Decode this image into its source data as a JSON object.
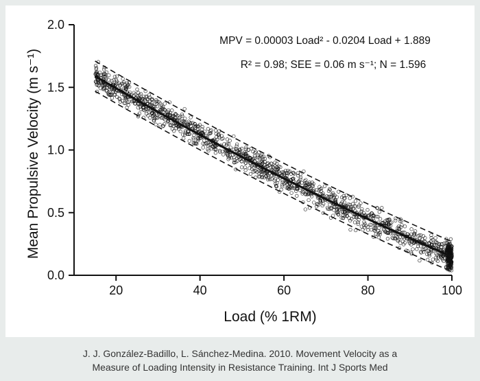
{
  "caption": {
    "line1": "J. J. González-Badillo, L. Sánchez-Medina. 2010. Movement Velocity as a",
    "line2": "Measure of Loading Intensity in Resistance Training. Int J Sports Med"
  },
  "chart_data": {
    "type": "scatter",
    "xlabel": "Load (% 1RM)",
    "ylabel": "Mean Propulsive Velocity (m s⁻¹)",
    "xlim": [
      10,
      100
    ],
    "ylim": [
      0,
      2.0
    ],
    "x_ticks": [
      "20",
      "40",
      "60",
      "80",
      "100"
    ],
    "y_ticks": [
      "0.0",
      "0.5",
      "1.0",
      "1.5",
      "2.0"
    ],
    "grid": false,
    "annotations": {
      "equation": "MPV = 0.00003 Load² - 0.0204 Load + 1.889",
      "stats": "R² = 0.98; SEE = 0.06 m s⁻¹; N = 1.596"
    },
    "fit": {
      "coefficients": {
        "a": 3e-05,
        "b": -0.0204,
        "c": 1.889
      },
      "x_range": [
        15,
        100
      ],
      "band_offsets": [
        0.12,
        -0.12
      ],
      "line_style": "solid",
      "band_style": "dashed"
    },
    "scatter": {
      "n_shown": 1596,
      "x_range": [
        15,
        100
      ],
      "marker": "open-circle",
      "spread_sd": 0.06
    },
    "colors": {
      "ink": "#111111",
      "panel": "#ffffff",
      "background": "#e8eceb"
    }
  }
}
